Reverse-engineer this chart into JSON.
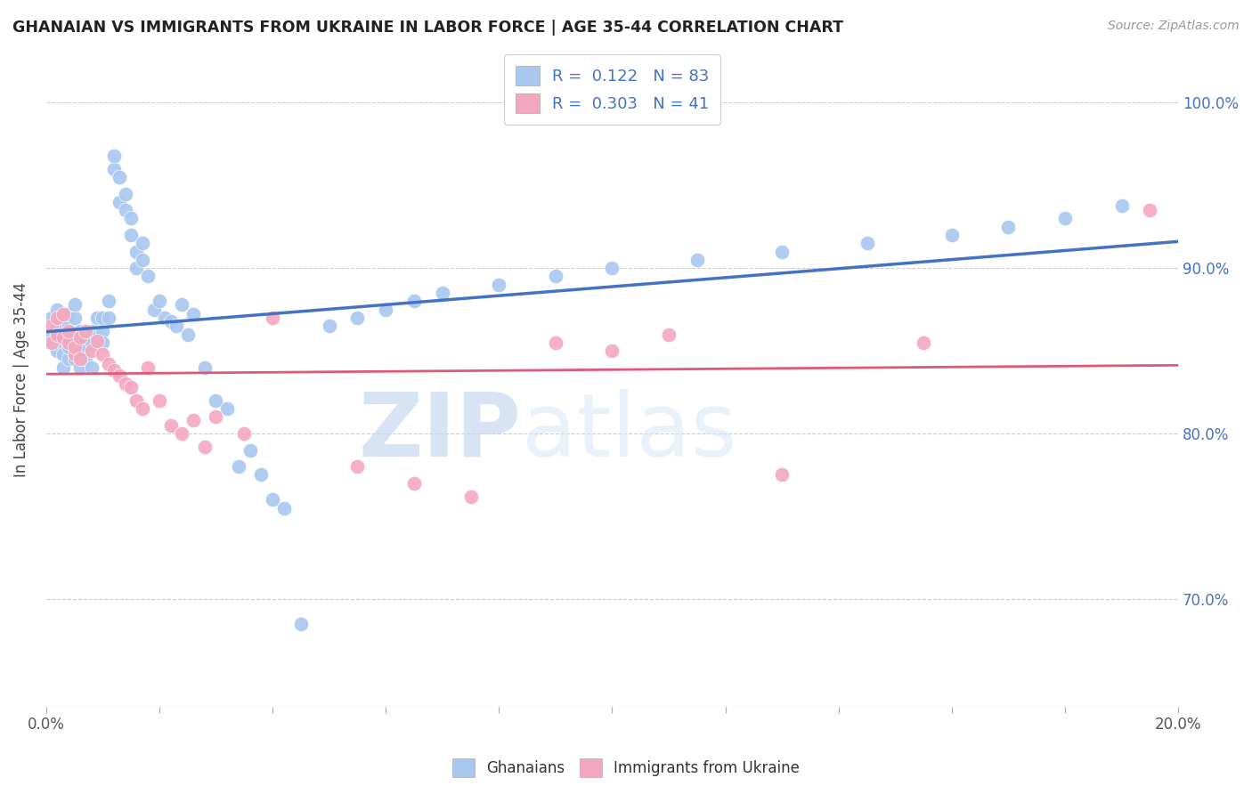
{
  "title": "GHANAIAN VS IMMIGRANTS FROM UKRAINE IN LABOR FORCE | AGE 35-44 CORRELATION CHART",
  "source": "Source: ZipAtlas.com",
  "ylabel": "In Labor Force | Age 35-44",
  "xmin": 0.0,
  "xmax": 0.2,
  "ymin": 0.635,
  "ymax": 1.03,
  "blue_color": "#A8C8F0",
  "pink_color": "#F4A8C0",
  "blue_line_color": "#4472C4",
  "pink_line_color": "#E05878",
  "R_blue": 0.122,
  "N_blue": 83,
  "R_pink": 0.303,
  "N_pink": 41,
  "watermark_zip": "ZIP",
  "watermark_atlas": "atlas",
  "watermark_color": "#C8D8F0",
  "legend_label_blue": "Ghanaians",
  "legend_label_pink": "Immigrants from Ukraine",
  "blue_x": [
    0.001,
    0.001,
    0.001,
    0.002,
    0.002,
    0.002,
    0.002,
    0.003,
    0.003,
    0.003,
    0.003,
    0.003,
    0.004,
    0.004,
    0.004,
    0.004,
    0.004,
    0.005,
    0.005,
    0.005,
    0.005,
    0.006,
    0.006,
    0.006,
    0.006,
    0.007,
    0.007,
    0.007,
    0.008,
    0.008,
    0.008,
    0.009,
    0.009,
    0.01,
    0.01,
    0.01,
    0.011,
    0.011,
    0.012,
    0.012,
    0.013,
    0.013,
    0.014,
    0.014,
    0.015,
    0.015,
    0.016,
    0.016,
    0.017,
    0.017,
    0.018,
    0.019,
    0.02,
    0.021,
    0.022,
    0.023,
    0.024,
    0.025,
    0.026,
    0.028,
    0.03,
    0.032,
    0.034,
    0.036,
    0.038,
    0.04,
    0.042,
    0.045,
    0.05,
    0.055,
    0.06,
    0.065,
    0.07,
    0.08,
    0.09,
    0.1,
    0.115,
    0.13,
    0.145,
    0.16,
    0.17,
    0.18,
    0.19
  ],
  "blue_y": [
    0.86,
    0.87,
    0.855,
    0.875,
    0.865,
    0.85,
    0.858,
    0.87,
    0.862,
    0.855,
    0.848,
    0.84,
    0.858,
    0.865,
    0.872,
    0.845,
    0.852,
    0.86,
    0.87,
    0.878,
    0.845,
    0.855,
    0.862,
    0.848,
    0.84,
    0.852,
    0.858,
    0.845,
    0.855,
    0.862,
    0.84,
    0.858,
    0.87,
    0.862,
    0.87,
    0.855,
    0.88,
    0.87,
    0.96,
    0.968,
    0.955,
    0.94,
    0.935,
    0.945,
    0.92,
    0.93,
    0.91,
    0.9,
    0.915,
    0.905,
    0.895,
    0.875,
    0.88,
    0.87,
    0.868,
    0.865,
    0.878,
    0.86,
    0.872,
    0.84,
    0.82,
    0.815,
    0.78,
    0.79,
    0.775,
    0.76,
    0.755,
    0.685,
    0.865,
    0.87,
    0.875,
    0.88,
    0.885,
    0.89,
    0.895,
    0.9,
    0.905,
    0.91,
    0.915,
    0.92,
    0.925,
    0.93,
    0.938
  ],
  "pink_x": [
    0.001,
    0.001,
    0.002,
    0.002,
    0.003,
    0.003,
    0.004,
    0.004,
    0.005,
    0.005,
    0.006,
    0.006,
    0.007,
    0.008,
    0.009,
    0.01,
    0.011,
    0.012,
    0.013,
    0.014,
    0.015,
    0.016,
    0.017,
    0.018,
    0.02,
    0.022,
    0.024,
    0.026,
    0.028,
    0.03,
    0.035,
    0.04,
    0.055,
    0.065,
    0.075,
    0.09,
    0.1,
    0.11,
    0.13,
    0.155,
    0.195
  ],
  "pink_y": [
    0.865,
    0.855,
    0.87,
    0.86,
    0.858,
    0.872,
    0.855,
    0.862,
    0.848,
    0.852,
    0.845,
    0.858,
    0.862,
    0.85,
    0.856,
    0.848,
    0.842,
    0.838,
    0.835,
    0.83,
    0.828,
    0.82,
    0.815,
    0.84,
    0.82,
    0.805,
    0.8,
    0.808,
    0.792,
    0.81,
    0.8,
    0.87,
    0.78,
    0.77,
    0.762,
    0.855,
    0.85,
    0.86,
    0.775,
    0.855,
    0.935
  ]
}
